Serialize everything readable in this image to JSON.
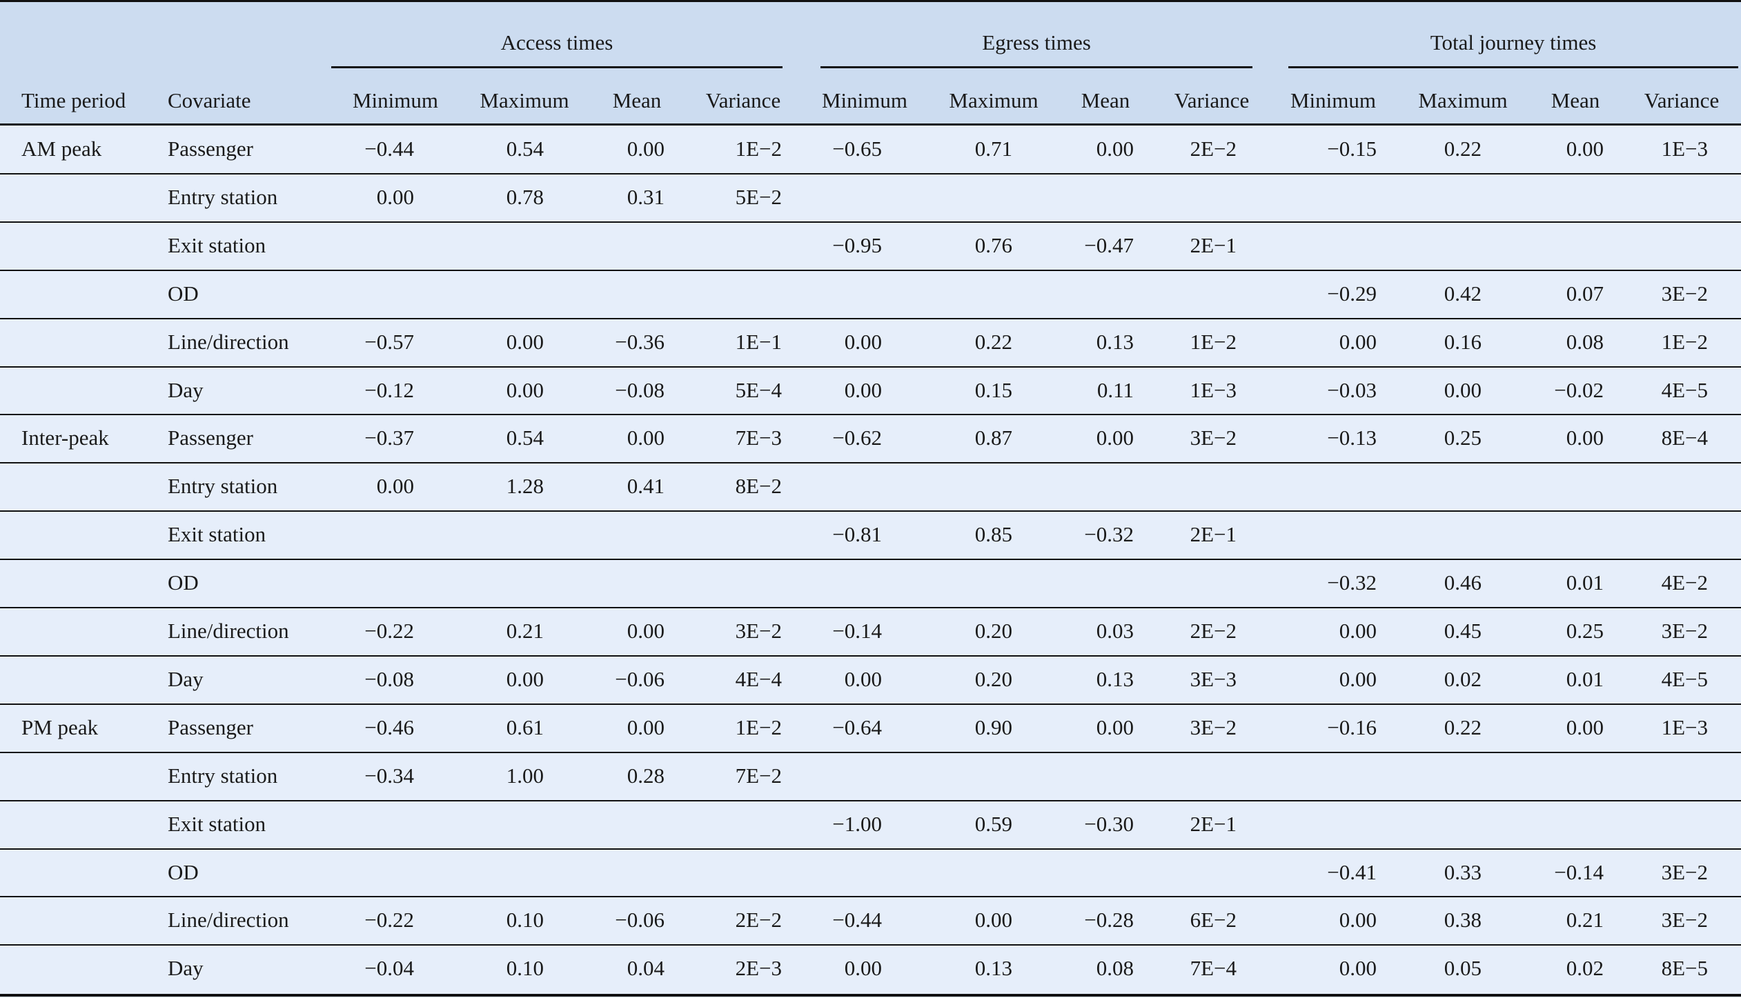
{
  "groups": [
    "Access times",
    "Egress times",
    "Total journey times"
  ],
  "headers": {
    "time_period": "Time period",
    "covariate": "Covariate",
    "stats": [
      "Minimum",
      "Maximum",
      "Mean",
      "Variance"
    ]
  },
  "rows": [
    {
      "period": "AM peak",
      "covariate": "Passenger",
      "values": [
        "−0.44",
        "0.54",
        "0.00",
        "1E−2",
        "−0.65",
        "0.71",
        "0.00",
        "2E−2",
        "−0.15",
        "0.22",
        "0.00",
        "1E−3"
      ]
    },
    {
      "period": "",
      "covariate": "Entry station",
      "values": [
        "0.00",
        "0.78",
        "0.31",
        "5E−2",
        "",
        "",
        "",
        "",
        "",
        "",
        "",
        ""
      ]
    },
    {
      "period": "",
      "covariate": "Exit station",
      "values": [
        "",
        "",
        "",
        "",
        "−0.95",
        "0.76",
        "−0.47",
        "2E−1",
        "",
        "",
        "",
        ""
      ]
    },
    {
      "period": "",
      "covariate": "OD",
      "values": [
        "",
        "",
        "",
        "",
        "",
        "",
        "",
        "",
        "−0.29",
        "0.42",
        "0.07",
        "3E−2"
      ]
    },
    {
      "period": "",
      "covariate": "Line/direction",
      "values": [
        "−0.57",
        "0.00",
        "−0.36",
        "1E−1",
        "0.00",
        "0.22",
        "0.13",
        "1E−2",
        "0.00",
        "0.16",
        "0.08",
        "1E−2"
      ]
    },
    {
      "period": "",
      "covariate": "Day",
      "values": [
        "−0.12",
        "0.00",
        "−0.08",
        "5E−4",
        "0.00",
        "0.15",
        "0.11",
        "1E−3",
        "−0.03",
        "0.00",
        "−0.02",
        "4E−5"
      ]
    },
    {
      "period": "Inter-peak",
      "covariate": "Passenger",
      "values": [
        "−0.37",
        "0.54",
        "0.00",
        "7E−3",
        "−0.62",
        "0.87",
        "0.00",
        "3E−2",
        "−0.13",
        "0.25",
        "0.00",
        "8E−4"
      ]
    },
    {
      "period": "",
      "covariate": "Entry station",
      "values": [
        "0.00",
        "1.28",
        "0.41",
        "8E−2",
        "",
        "",
        "",
        "",
        "",
        "",
        "",
        ""
      ]
    },
    {
      "period": "",
      "covariate": "Exit station",
      "values": [
        "",
        "",
        "",
        "",
        "−0.81",
        "0.85",
        "−0.32",
        "2E−1",
        "",
        "",
        "",
        ""
      ]
    },
    {
      "period": "",
      "covariate": "OD",
      "values": [
        "",
        "",
        "",
        "",
        "",
        "",
        "",
        "",
        "−0.32",
        "0.46",
        "0.01",
        "4E−2"
      ]
    },
    {
      "period": "",
      "covariate": "Line/direction",
      "values": [
        "−0.22",
        "0.21",
        "0.00",
        "3E−2",
        "−0.14",
        "0.20",
        "0.03",
        "2E−2",
        "0.00",
        "0.45",
        "0.25",
        "3E−2"
      ]
    },
    {
      "period": "",
      "covariate": "Day",
      "values": [
        "−0.08",
        "0.00",
        "−0.06",
        "4E−4",
        "0.00",
        "0.20",
        "0.13",
        "3E−3",
        "0.00",
        "0.02",
        "0.01",
        "4E−5"
      ]
    },
    {
      "period": "PM peak",
      "covariate": "Passenger",
      "values": [
        "−0.46",
        "0.61",
        "0.00",
        "1E−2",
        "−0.64",
        "0.90",
        "0.00",
        "3E−2",
        "−0.16",
        "0.22",
        "0.00",
        "1E−3"
      ]
    },
    {
      "period": "",
      "covariate": "Entry station",
      "values": [
        "−0.34",
        "1.00",
        "0.28",
        "7E−2",
        "",
        "",
        "",
        "",
        "",
        "",
        "",
        ""
      ]
    },
    {
      "period": "",
      "covariate": "Exit station",
      "values": [
        "",
        "",
        "",
        "",
        "−1.00",
        "0.59",
        "−0.30",
        "2E−1",
        "",
        "",
        "",
        ""
      ]
    },
    {
      "period": "",
      "covariate": "OD",
      "values": [
        "",
        "",
        "",
        "",
        "",
        "",
        "",
        "",
        "−0.41",
        "0.33",
        "−0.14",
        "3E−2"
      ]
    },
    {
      "period": "",
      "covariate": "Line/direction",
      "values": [
        "−0.22",
        "0.10",
        "−0.06",
        "2E−2",
        "−0.44",
        "0.00",
        "−0.28",
        "6E−2",
        "0.00",
        "0.38",
        "0.21",
        "3E−2"
      ]
    },
    {
      "period": "",
      "covariate": "Day",
      "values": [
        "−0.04",
        "0.10",
        "0.04",
        "2E−3",
        "0.00",
        "0.13",
        "0.08",
        "7E−4",
        "0.00",
        "0.05",
        "0.02",
        "8E−5"
      ]
    }
  ]
}
